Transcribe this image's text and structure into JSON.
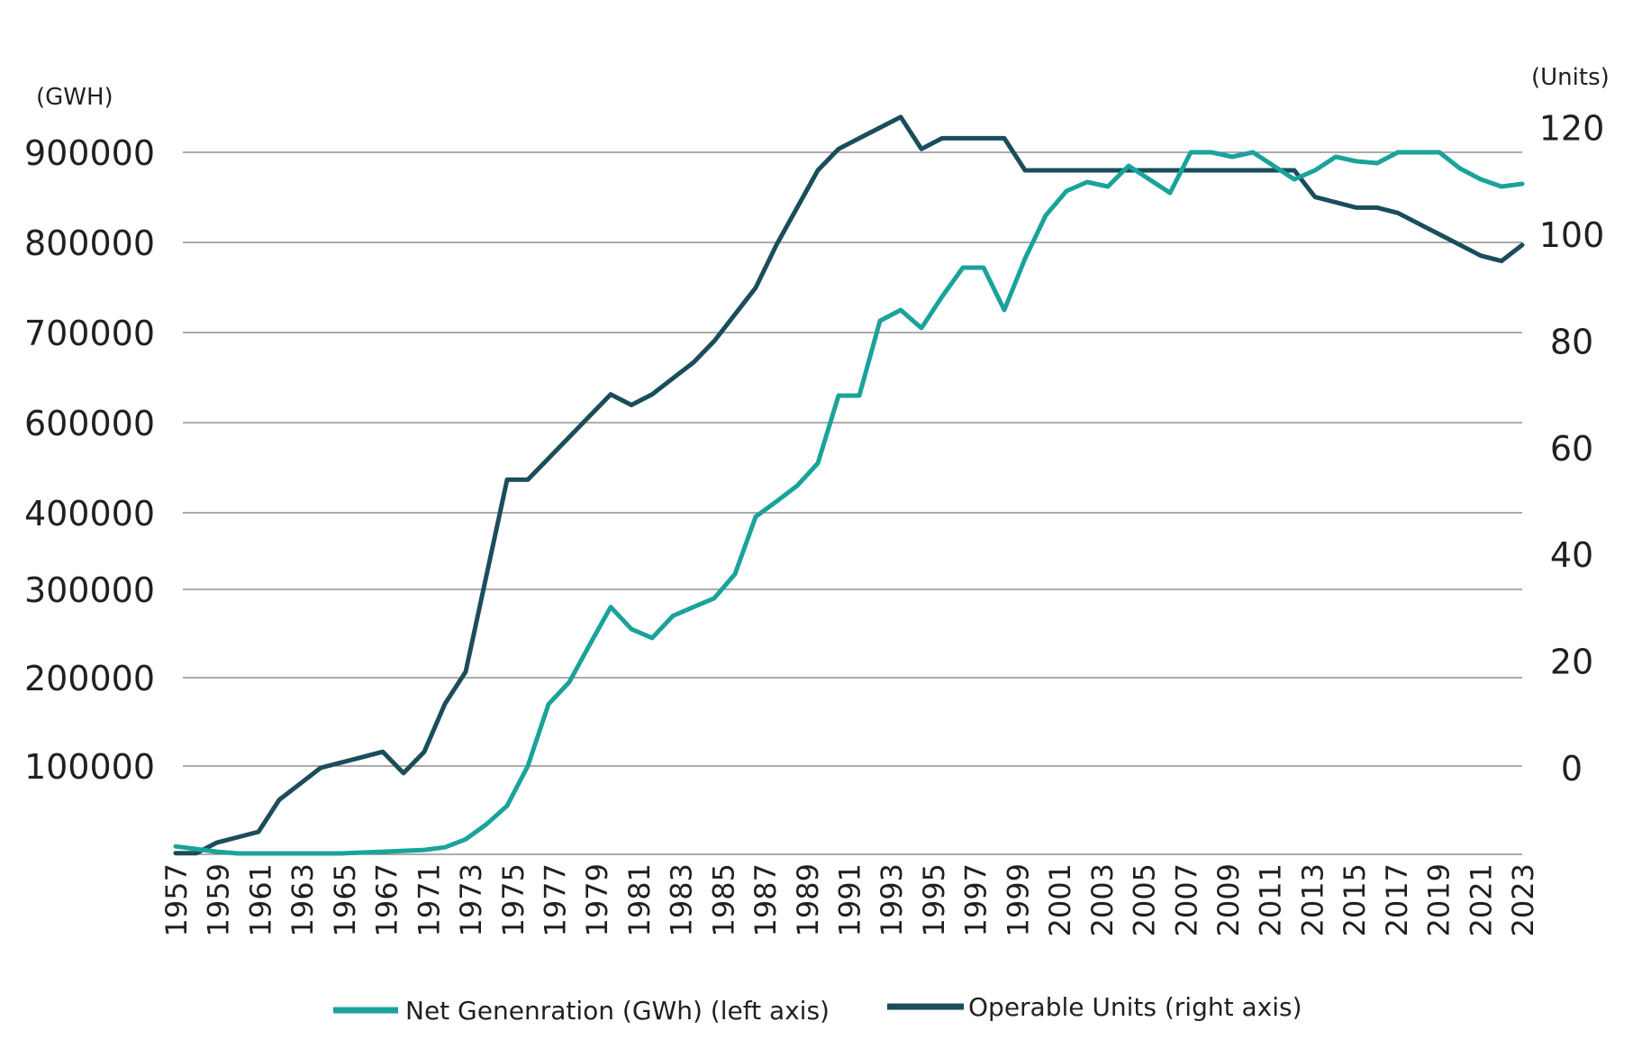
{
  "chart_data": {
    "type": "line",
    "left_unit": "(GWH)",
    "right_unit": "(Units)",
    "left_ticks": [
      {
        "label": "100000",
        "value": 100000
      },
      {
        "label": "200000",
        "value": 200000
      },
      {
        "label": "300000",
        "value": 300000
      },
      {
        "label": "400000",
        "value": 400000
      },
      {
        "label": "600000",
        "value": 600000
      },
      {
        "label": "700000",
        "value": 700000
      },
      {
        "label": "800000",
        "value": 800000
      },
      {
        "label": "900000",
        "value": 900000
      }
    ],
    "right_ticks": [
      {
        "label": "0",
        "value": 0
      },
      {
        "label": "20",
        "value": 20
      },
      {
        "label": "40",
        "value": 40
      },
      {
        "label": "60",
        "value": 60
      },
      {
        "label": "80",
        "value": 80
      },
      {
        "label": "100",
        "value": 100
      },
      {
        "label": "120",
        "value": 120
      }
    ],
    "x_labels": [
      "1957",
      "1959",
      "1961",
      "1963",
      "1965",
      "1967",
      "1971",
      "1973",
      "1975",
      "1977",
      "1979",
      "1981",
      "1983",
      "1985",
      "1987",
      "1989",
      "1991",
      "1993",
      "1995",
      "1997",
      "1999",
      "2001",
      "2003",
      "2005",
      "2007",
      "2009",
      "2011",
      "2013",
      "2015",
      "2017",
      "2019",
      "2021",
      "2023"
    ],
    "x": [
      "1957",
      "1958",
      "1959",
      "1960",
      "1961",
      "1962",
      "1963",
      "1964",
      "1965",
      "1966",
      "1967",
      "1968",
      "1969",
      "1971",
      "1972",
      "1973",
      "1974",
      "1975",
      "1976",
      "1977",
      "1978",
      "1979",
      "1980",
      "1981",
      "1982",
      "1983",
      "1984",
      "1985",
      "1986",
      "1987",
      "1988",
      "1989",
      "1990",
      "1991",
      "1992",
      "1993",
      "1994",
      "1995",
      "1996",
      "1997",
      "1998",
      "1999",
      "2000",
      "2001",
      "2002",
      "2003",
      "2004",
      "2005",
      "2006",
      "2007",
      "2008",
      "2009",
      "2010",
      "2011",
      "2012",
      "2013",
      "2014",
      "2015",
      "2016",
      "2017",
      "2018",
      "2019",
      "2020",
      "2021",
      "2022",
      "2023"
    ],
    "series": [
      {
        "name": "Net Genenration (GWh) (left axis)",
        "axis": "left",
        "color": "#1aa39a",
        "values": [
          9000,
          6000,
          3000,
          1000,
          1000,
          1000,
          1000,
          1000,
          1000,
          2000,
          3000,
          4000,
          5000,
          8000,
          17000,
          34000,
          55000,
          100000,
          170000,
          195000,
          238000,
          280000,
          255000,
          245000,
          270000,
          280000,
          290000,
          320000,
          395000,
          425000,
          460000,
          510000,
          630000,
          630000,
          713000,
          725000,
          705000,
          740000,
          772000,
          772000,
          725000,
          782000,
          830000,
          857000,
          867000,
          862000,
          885000,
          870000,
          855000,
          900000,
          900000,
          895000,
          900000,
          885000,
          870000,
          880000,
          895000,
          890000,
          888000,
          900000,
          900000,
          900000,
          882000,
          870000,
          862000,
          865000
        ]
      },
      {
        "name": "Operable Units (right axis)",
        "axis": "right",
        "color": "#1b4d5c",
        "values": [
          -16,
          -16,
          -14,
          -13,
          -12,
          -6,
          -3,
          0,
          1,
          2,
          3,
          -1,
          3,
          12,
          18,
          36,
          54,
          54,
          58,
          62,
          66,
          70,
          68,
          70,
          73,
          76,
          80,
          85,
          90,
          98,
          105,
          112,
          116,
          118,
          120,
          122,
          116,
          118,
          118,
          118,
          118,
          112,
          112,
          112,
          112,
          112,
          112,
          112,
          112,
          112,
          112,
          112,
          112,
          112,
          112,
          107,
          106,
          105,
          105,
          104,
          102,
          100,
          98,
          96,
          95,
          98
        ]
      }
    ],
    "legend_position": "bottom",
    "grid": "horizontal"
  }
}
